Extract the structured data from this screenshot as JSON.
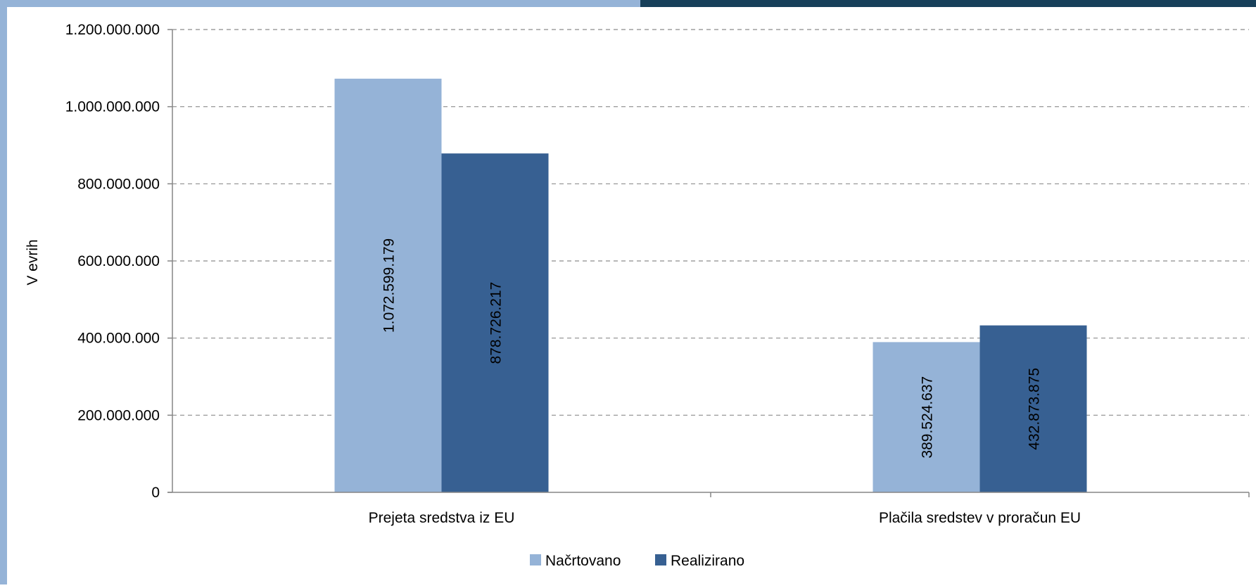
{
  "frame": {
    "accent_light": "#95B3D7",
    "accent_dark": "#17405A"
  },
  "chart_data": {
    "type": "bar",
    "categories": [
      "Prejeta sredstva iz EU",
      "Plačila sredstev v proračun EU"
    ],
    "series": [
      {
        "name": "Načrtovano",
        "values": [
          1072599179,
          389524637
        ],
        "labels": [
          "1.072.599.179",
          "389.524.637"
        ],
        "color": "#95B3D7"
      },
      {
        "name": "Realizirano",
        "values": [
          878726217,
          432873875
        ],
        "labels": [
          "878.726.217",
          "432.873.875"
        ],
        "color": "#376092"
      }
    ],
    "ylabel": "V evrih",
    "ylim": [
      0,
      1200000000
    ],
    "yticks": [
      0,
      200000000,
      400000000,
      600000000,
      800000000,
      1000000000,
      1200000000
    ],
    "ytick_labels": [
      "0",
      "200.000.000",
      "400.000.000",
      "600.000.000",
      "800.000.000",
      "1.000.000.000",
      "1.200.000.000"
    ],
    "grid": true,
    "grid_style": "dashed",
    "legend_position": "bottom-center",
    "data_labels": "inside-rotated"
  }
}
